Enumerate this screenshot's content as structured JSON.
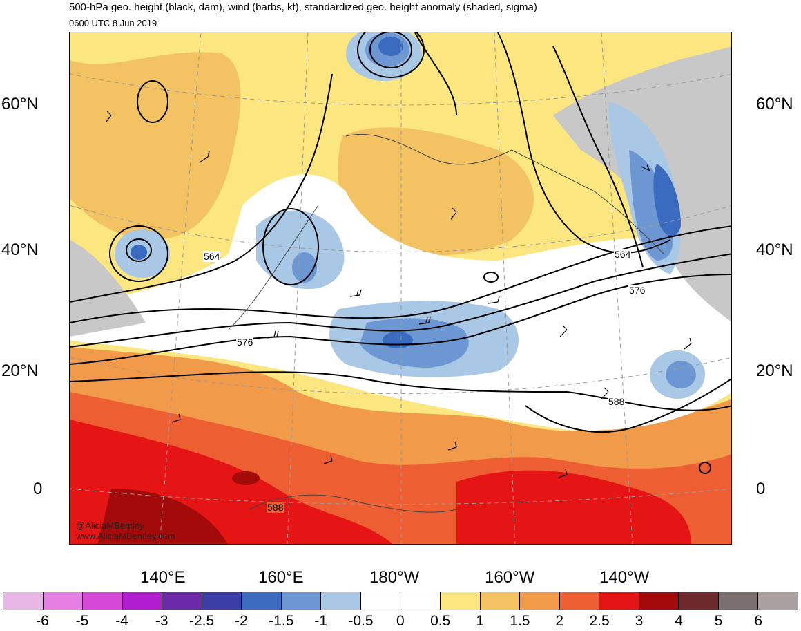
{
  "title": "500-hPa geo. height (black, dam), wind (barbs, kt), standardized geo. height anomaly (shaded, sigma)",
  "subtitle": "0600 UTC 8 Jun 2019",
  "lat_labels_left": [
    "60°N",
    "40°N",
    "20°N",
    "0"
  ],
  "lat_labels_right": [
    "60°N",
    "40°N",
    "20°N",
    "0"
  ],
  "lon_labels": [
    "140°E",
    "160°E",
    "180°W",
    "160°W",
    "140°W"
  ],
  "contour_labels": [
    "564",
    "564",
    "576",
    "576",
    "588",
    "588"
  ],
  "credit": {
    "handle": "@AliciaMBentley",
    "site": "www.AliciaMBentley.com"
  },
  "colorbar": {
    "colors": [
      "#e8b7e5",
      "#e27fe0",
      "#d44ad6",
      "#b01ed0",
      "#6c2aa8",
      "#3b3ea6",
      "#3a6bbf",
      "#6d97d2",
      "#a9c8e6",
      "#ffffff",
      "#ffffff",
      "#fbe680",
      "#f3c262",
      "#f09a4a",
      "#ed5f33",
      "#e51515",
      "#a30a0a",
      "#6e2a2a",
      "#7a6e6e",
      "#aaa0a0"
    ],
    "labels": [
      "-6",
      "-5",
      "-4",
      "-3",
      "-2.5",
      "-2",
      "-1.5",
      "-1",
      "-0.5",
      "0",
      "0.5",
      "1",
      "1.5",
      "2",
      "2.5",
      "3",
      "4",
      "5",
      "6"
    ]
  },
  "colors": {
    "ocean_base": "#ffffff",
    "land_gray": "#c8c8c8",
    "contour": "#000000",
    "graticule": "#9a9a9a"
  }
}
